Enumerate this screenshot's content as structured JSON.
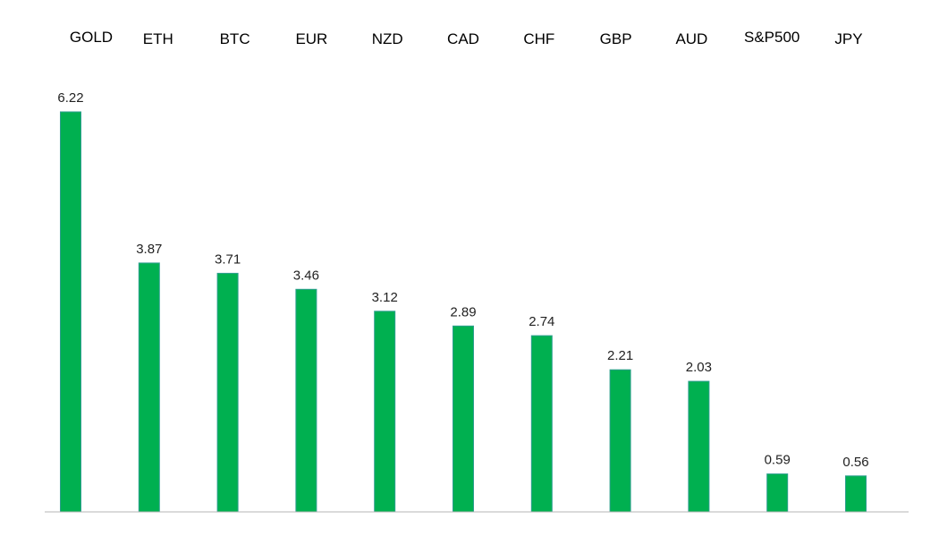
{
  "chart_data": {
    "type": "bar",
    "categories": [
      "GOLD",
      "ETH",
      "BTC",
      "EUR",
      "NZD",
      "CAD",
      "CHF",
      "GBP",
      "AUD",
      "S&P500",
      "JPY"
    ],
    "values": [
      6.22,
      3.87,
      3.71,
      3.46,
      3.12,
      2.89,
      2.74,
      2.21,
      2.03,
      0.59,
      0.56
    ],
    "value_labels": [
      "6.22",
      "3.87",
      "3.71",
      "3.46",
      "3.12",
      "2.89",
      "2.74",
      "2.21",
      "2.03",
      "0.59",
      "0.56"
    ],
    "title": "",
    "xlabel": "",
    "ylabel": "",
    "ylim": [
      0,
      6.22
    ],
    "grid": false,
    "category_labels_position": "top",
    "bar_color": "#00b050",
    "bar_edge_color": "#2e9e8e"
  }
}
